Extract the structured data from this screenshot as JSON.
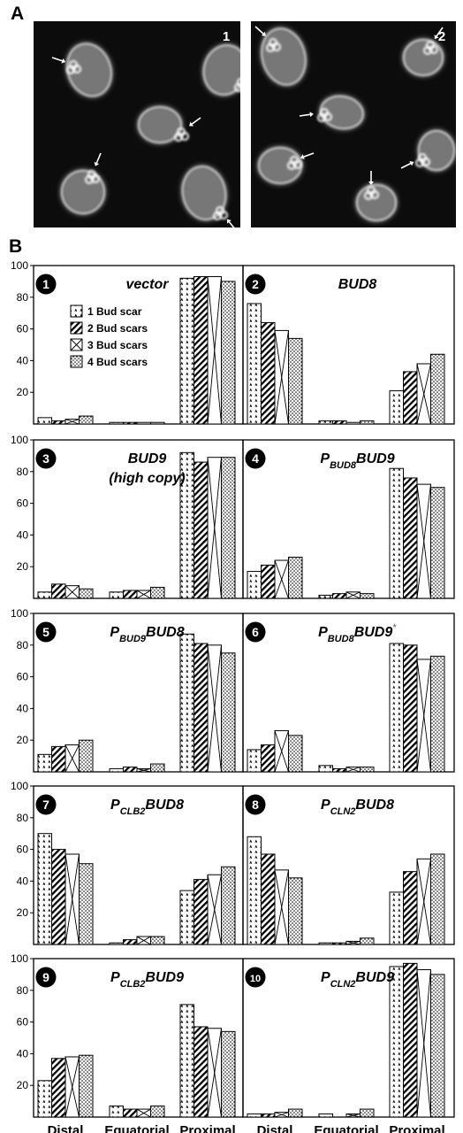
{
  "panel_a": {
    "label": "A",
    "images": [
      {
        "number": "1"
      },
      {
        "number": "2"
      }
    ]
  },
  "panel_b": {
    "label": "B"
  },
  "colors": {
    "bar_fill": "#ffffff",
    "bar_stroke": "#000000",
    "micrograph_bg": "#0c0c0c",
    "cell_fill": "#8a8a8a"
  },
  "chart_data": {
    "type": "bar",
    "categories": [
      "Distal",
      "Equatorial",
      "Proximal"
    ],
    "series_names": [
      "1 Bud scar",
      "2 Bud scars",
      "3 Bud scars",
      "4 Bud scars"
    ],
    "y_ticks": [
      20,
      40,
      60,
      80,
      100
    ],
    "ylim": [
      0,
      100
    ],
    "legend_position": "upper-left of panel 1",
    "panels": [
      {
        "number": "1",
        "title_main": "vector",
        "title_sub": "",
        "title_tail": "",
        "title_line2": "",
        "title_star": "",
        "values": [
          [
            4,
            1,
            92
          ],
          [
            2,
            1,
            93
          ],
          [
            3,
            1,
            93
          ],
          [
            5,
            1,
            90
          ]
        ]
      },
      {
        "number": "2",
        "title_main": "BUD8",
        "title_sub": "",
        "title_tail": "",
        "title_line2": "",
        "title_star": "",
        "values": [
          [
            76,
            2,
            21
          ],
          [
            64,
            2,
            33
          ],
          [
            59,
            1,
            38
          ],
          [
            54,
            2,
            44
          ]
        ]
      },
      {
        "number": "3",
        "title_main": "BUD9",
        "title_sub": "",
        "title_tail": "",
        "title_line2": "(high copy)",
        "title_star": "",
        "values": [
          [
            4,
            4,
            92
          ],
          [
            9,
            5,
            86
          ],
          [
            8,
            5,
            89
          ],
          [
            6,
            7,
            89
          ]
        ]
      },
      {
        "number": "4",
        "title_main": "P",
        "title_sub": "BUD8",
        "title_tail": "BUD9",
        "title_line2": "",
        "title_star": "",
        "values": [
          [
            17,
            2,
            82
          ],
          [
            21,
            3,
            76
          ],
          [
            24,
            4,
            72
          ],
          [
            26,
            3,
            70
          ]
        ]
      },
      {
        "number": "5",
        "title_main": "P",
        "title_sub": "BUD9",
        "title_tail": "BUD8",
        "title_line2": "",
        "title_star": "",
        "values": [
          [
            11,
            2,
            87
          ],
          [
            16,
            3,
            81
          ],
          [
            17,
            2,
            80
          ],
          [
            20,
            5,
            75
          ]
        ]
      },
      {
        "number": "6",
        "title_main": "P",
        "title_sub": "BUD8",
        "title_tail": "BUD9",
        "title_line2": "",
        "title_star": "*",
        "values": [
          [
            14,
            4,
            81
          ],
          [
            17,
            2,
            80
          ],
          [
            26,
            3,
            71
          ],
          [
            23,
            3,
            73
          ]
        ]
      },
      {
        "number": "7",
        "title_main": "P",
        "title_sub": "CLB2",
        "title_tail": "BUD8",
        "title_line2": "",
        "title_star": "",
        "values": [
          [
            70,
            1,
            34
          ],
          [
            60,
            3,
            41
          ],
          [
            57,
            5,
            44
          ],
          [
            51,
            5,
            49
          ]
        ]
      },
      {
        "number": "8",
        "title_main": "P",
        "title_sub": "CLN2",
        "title_tail": "BUD8",
        "title_line2": "",
        "title_star": "",
        "values": [
          [
            68,
            1,
            33
          ],
          [
            57,
            1,
            46
          ],
          [
            47,
            2,
            54
          ],
          [
            42,
            4,
            57
          ]
        ]
      },
      {
        "number": "9",
        "title_main": "P",
        "title_sub": "CLB2",
        "title_tail": "BUD9",
        "title_line2": "",
        "title_star": "",
        "values": [
          [
            23,
            7,
            71
          ],
          [
            37,
            5,
            57
          ],
          [
            38,
            5,
            56
          ],
          [
            39,
            7,
            54
          ]
        ]
      },
      {
        "number": "10",
        "title_main": "P",
        "title_sub": "CLN2",
        "title_tail": "BUD9",
        "title_line2": "",
        "title_star": "",
        "values": [
          [
            2,
            2,
            95
          ],
          [
            2,
            0,
            97
          ],
          [
            3,
            2,
            93
          ],
          [
            5,
            5,
            90
          ]
        ]
      }
    ]
  }
}
